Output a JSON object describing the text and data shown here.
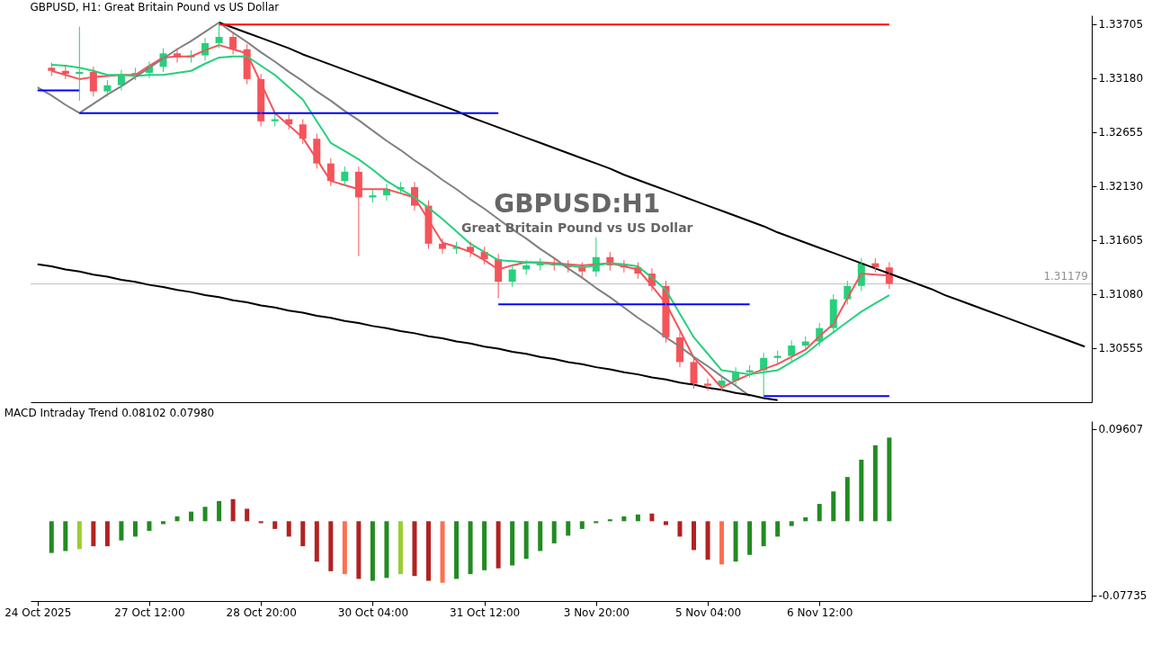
{
  "chart_data": [
    {
      "type": "candlestick",
      "title": "GBPUSD, H1:  Great Britain Pound vs US Dollar",
      "annotations": [
        "GBPUSD:H1",
        "Great Britain Pound vs US Dollar"
      ],
      "tick_labels": "y",
      "ylim": [
        1.3003,
        1.3379
      ],
      "yticks": [
        1.33705,
        {
          "value": 1.3318,
          "label": "1.33180"
        },
        1.32655,
        {
          "value": 1.3213,
          "label": "1.32130"
        },
        1.31605,
        {
          "value": 1.3108,
          "label": "1.31080"
        },
        1.30555
      ],
      "categories": [
        null,
        null,
        null,
        null,
        null,
        null,
        null,
        null,
        null,
        null,
        null,
        null,
        null,
        null,
        null,
        null,
        null,
        null,
        null,
        null,
        null,
        null,
        null,
        null,
        null,
        null,
        null,
        null,
        null,
        null,
        null,
        null,
        null,
        null,
        null,
        null,
        null,
        null,
        null,
        null,
        null,
        null,
        null,
        null,
        null,
        null,
        null,
        null,
        null,
        null,
        null,
        null,
        null,
        null,
        null,
        null,
        null,
        null,
        null,
        null,
        null,
        null,
        null,
        null,
        null,
        null,
        null,
        null,
        null,
        null,
        null,
        null,
        null,
        null,
        null,
        null
      ],
      "ohlc": [
        null,
        [
          1.3328,
          1.3333,
          1.332,
          1.3325
        ],
        [
          1.3325,
          1.333,
          1.3317,
          1.3322
        ],
        [
          1.3322,
          1.3368,
          1.3296,
          1.3324
        ],
        [
          1.3324,
          1.3329,
          1.33,
          1.3305
        ],
        [
          1.3305,
          1.3316,
          1.33,
          1.3311
        ],
        [
          1.3311,
          1.3326,
          1.3306,
          1.3321
        ],
        [
          1.3321,
          1.3328,
          1.3316,
          1.3323
        ],
        [
          1.3323,
          1.3334,
          1.3318,
          1.3329
        ],
        [
          1.3329,
          1.3347,
          1.3324,
          1.3342
        ],
        [
          1.3342,
          1.3347,
          1.3333,
          1.3338
        ],
        [
          1.3338,
          1.3345,
          1.3333,
          1.334
        ],
        [
          1.334,
          1.3357,
          1.3335,
          1.3352
        ],
        [
          1.3352,
          1.3372,
          1.3347,
          1.3358
        ],
        [
          1.3358,
          1.3363,
          1.3341,
          1.3346
        ],
        [
          1.3346,
          1.3351,
          1.3312,
          1.3317
        ],
        [
          1.3317,
          1.3322,
          1.3271,
          1.3276
        ],
        [
          1.3276,
          1.3283,
          1.3271,
          1.3278
        ],
        [
          1.3278,
          1.3283,
          1.3268,
          1.3273
        ],
        [
          1.3273,
          1.3278,
          1.3254,
          1.3259
        ],
        [
          1.3259,
          1.3264,
          1.323,
          1.3235
        ],
        [
          1.3235,
          1.324,
          1.3213,
          1.3218
        ],
        [
          1.3218,
          1.3232,
          1.3213,
          1.3227
        ],
        [
          1.3227,
          1.3232,
          1.3145,
          1.3202
        ],
        [
          1.3202,
          1.3209,
          1.3197,
          1.3204
        ],
        [
          1.3204,
          1.3215,
          1.3199,
          1.321
        ],
        [
          1.321,
          1.3217,
          1.3205,
          1.3212
        ],
        [
          1.3212,
          1.3217,
          1.3189,
          1.3194
        ],
        [
          1.3194,
          1.3199,
          1.3152,
          1.3157
        ],
        [
          1.3157,
          1.3162,
          1.3147,
          1.3152
        ],
        [
          1.3152,
          1.3159,
          1.3147,
          1.3154
        ],
        [
          1.3154,
          1.3159,
          1.3144,
          1.3149
        ],
        [
          1.3149,
          1.3154,
          1.3137,
          1.3142
        ],
        [
          1.3142,
          1.3147,
          1.3104,
          1.312
        ],
        [
          1.312,
          1.3137,
          1.3115,
          1.3132
        ],
        [
          1.3132,
          1.3141,
          1.3127,
          1.3136
        ],
        [
          1.3136,
          1.3143,
          1.3131,
          1.3138
        ],
        [
          1.3138,
          1.3143,
          1.3131,
          1.3136
        ],
        [
          1.3136,
          1.3141,
          1.3129,
          1.3134
        ],
        [
          1.3134,
          1.3139,
          1.3125,
          1.313
        ],
        [
          1.313,
          1.3163,
          1.3125,
          1.3144
        ],
        [
          1.3144,
          1.3149,
          1.3131,
          1.3136
        ],
        [
          1.3136,
          1.3141,
          1.3129,
          1.3134
        ],
        [
          1.3134,
          1.3139,
          1.3123,
          1.3128
        ],
        [
          1.3128,
          1.3133,
          1.3111,
          1.3116
        ],
        [
          1.3116,
          1.3121,
          1.3061,
          1.3066
        ],
        [
          1.3066,
          1.3071,
          1.3037,
          1.3042
        ],
        [
          1.3042,
          1.3047,
          1.3016,
          1.3021
        ],
        [
          1.3021,
          1.3026,
          1.3014,
          1.3019
        ],
        [
          1.3019,
          1.3029,
          1.3014,
          1.3024
        ],
        [
          1.3024,
          1.3037,
          1.3019,
          1.3032
        ],
        [
          1.3032,
          1.3039,
          1.3027,
          1.3034
        ],
        [
          1.3034,
          1.3051,
          1.3009,
          1.3046
        ],
        [
          1.3046,
          1.3053,
          1.3041,
          1.3048
        ],
        [
          1.3048,
          1.3063,
          1.3043,
          1.3058
        ],
        [
          1.3058,
          1.3067,
          1.3053,
          1.3062
        ],
        [
          1.3062,
          1.308,
          1.3057,
          1.3075
        ],
        [
          1.3075,
          1.3108,
          1.307,
          1.3103
        ],
        [
          1.3103,
          1.3121,
          1.3098,
          1.3116
        ],
        [
          1.3116,
          1.3143,
          1.3111,
          1.3138
        ],
        [
          1.3138,
          1.3143,
          1.3129,
          1.3134
        ],
        [
          1.3134,
          1.3139,
          1.3113,
          1.3118
        ],
        null,
        null,
        null,
        null,
        null,
        null,
        null,
        null,
        null,
        null,
        null,
        null,
        null,
        null
      ],
      "colors": [
        null,
        "#f4545a",
        "#f4545a",
        "#26d07c",
        "#f4545a",
        "#26d07c",
        "#26d07c",
        "#26d07c",
        "#26d07c",
        "#26d07c",
        "#f4545a",
        "#26d07c",
        "#26d07c",
        "#26d07c",
        "#f4545a",
        "#f4545a",
        "#f4545a",
        "#26d07c",
        "#f4545a",
        "#f4545a",
        "#f4545a",
        "#f4545a",
        "#26d07c",
        "#f4545a",
        "#26d07c",
        "#26d07c",
        "#26d07c",
        "#f4545a",
        "#f4545a",
        "#f4545a",
        "#26d07c",
        "#f4545a",
        "#f4545a",
        "#f4545a",
        "#26d07c",
        "#26d07c",
        "#26d07c",
        "#f4545a",
        "#f4545a",
        "#f4545a",
        "#26d07c",
        "#f4545a",
        "#f4545a",
        "#f4545a",
        "#f4545a",
        "#f4545a",
        "#f4545a",
        "#f4545a",
        "#f4545a",
        "#26d07c",
        "#26d07c",
        "#26d07c",
        "#26d07c",
        "#26d07c",
        "#26d07c",
        "#26d07c",
        "#26d07c",
        "#26d07c",
        "#26d07c",
        "#26d07c",
        "#f4545a",
        "#f4545a",
        null,
        null,
        null,
        null,
        null,
        null,
        null,
        null,
        null,
        null,
        null,
        null,
        null,
        null
      ],
      "series": [
        {
          "type": "line",
          "color": "#f4545a",
          "values": [
            null,
            1.3325,
            1.3321,
            1.3317,
            1.3319,
            1.332,
            1.3321,
            1.3321,
            1.333,
            1.3338,
            1.3339,
            1.3339,
            1.3345,
            1.335,
            1.3346,
            1.3342,
            1.3313,
            1.3284,
            1.3272,
            1.326,
            1.3239,
            1.3218,
            1.3214,
            1.321,
            1.321,
            1.321,
            1.3206,
            1.3202,
            1.318,
            1.3158,
            1.3154,
            1.3149,
            1.3141,
            1.3132,
            1.3136,
            1.3139,
            1.3139,
            1.3138,
            1.3137,
            1.3136,
            1.3137,
            1.3138,
            1.3135,
            1.3132,
            1.3116,
            1.3099,
            1.3073,
            1.3046,
            1.3032,
            1.3017,
            1.3024,
            1.303,
            1.3035,
            1.304,
            1.3047,
            1.3054,
            1.3067,
            1.3079,
            1.3104,
            1.3128,
            1.3127,
            1.3126,
            null,
            null,
            null,
            null,
            null,
            null,
            null,
            null,
            null,
            null,
            null,
            null,
            null,
            null
          ]
        },
        {
          "type": "line",
          "color": "#26d07c",
          "values": [
            null,
            1.3331,
            1.333,
            1.3328,
            1.3325,
            1.3321,
            1.3321,
            1.332,
            1.3321,
            1.3321,
            1.3323,
            1.3325,
            1.3332,
            1.3338,
            1.3339,
            1.3339,
            1.333,
            1.3321,
            1.3309,
            1.3297,
            1.3276,
            1.3255,
            1.3247,
            1.3239,
            1.3229,
            1.3218,
            1.321,
            1.3202,
            1.3192,
            1.3181,
            1.3169,
            1.3157,
            1.3149,
            1.3141,
            1.314,
            1.3139,
            1.3138,
            1.3137,
            1.3136,
            1.3134,
            1.3136,
            1.3138,
            1.3137,
            1.3135,
            1.3124,
            1.3112,
            1.3089,
            1.3066,
            1.305,
            1.3034,
            1.3032,
            1.303,
            1.3032,
            1.3034,
            1.3042,
            1.305,
            1.3061,
            1.3071,
            1.3081,
            1.3091,
            1.3099,
            1.3107,
            null,
            null,
            null,
            null,
            null,
            null,
            null,
            null,
            null,
            null,
            null,
            null,
            null,
            null
          ]
        },
        {
          "type": "line",
          "color": "#808080",
          "values": [
            1.3309,
            1.3301,
            1.3292,
            1.3284,
            1.3293,
            1.3302,
            1.331,
            1.3319,
            1.3328,
            1.3337,
            1.3346,
            1.3354,
            1.3363,
            1.3372,
            1.3362,
            1.3353,
            1.3343,
            1.3334,
            1.3324,
            1.3315,
            1.3305,
            1.3296,
            1.3286,
            1.3277,
            1.3267,
            1.3257,
            1.3248,
            1.3238,
            1.3229,
            1.3219,
            1.321,
            1.32,
            1.3191,
            1.3181,
            1.3171,
            1.3162,
            1.3152,
            1.3143,
            1.3133,
            1.3124,
            1.3114,
            1.3105,
            1.3095,
            1.3085,
            1.3076,
            1.3066,
            1.3057,
            1.3047,
            1.3038,
            1.3028,
            1.3019,
            1.3009,
            null,
            null,
            null,
            null,
            null,
            null,
            null,
            null,
            null,
            null,
            null,
            null,
            null,
            null,
            null,
            null,
            null,
            null,
            null,
            null,
            null,
            null,
            null,
            null
          ]
        },
        {
          "type": "line",
          "color": "#000000",
          "values": [
            null,
            null,
            null,
            null,
            null,
            null,
            null,
            null,
            null,
            null,
            null,
            null,
            null,
            1.3372,
            1.3367,
            1.3362,
            1.3357,
            1.3352,
            1.3347,
            1.3341,
            1.3336,
            1.3331,
            1.3326,
            1.3321,
            1.3316,
            1.3311,
            1.3306,
            1.3301,
            1.3296,
            1.3291,
            1.3286,
            1.328,
            1.3275,
            1.327,
            1.3265,
            1.326,
            1.3255,
            1.325,
            1.3245,
            1.324,
            1.3235,
            1.323,
            1.3224,
            1.3219,
            1.3214,
            1.3209,
            1.3204,
            1.3199,
            1.3194,
            1.3189,
            1.3184,
            1.3179,
            1.3174,
            1.3168,
            1.3163,
            1.3158,
            1.3153,
            1.3148,
            1.3143,
            1.3138,
            1.3133,
            1.3128,
            1.3123,
            1.3118,
            1.3113,
            1.3107,
            1.3102,
            1.3097,
            1.3092,
            1.3087,
            1.3082,
            1.3077,
            1.3072,
            1.3067,
            1.3062,
            1.3057
          ]
        },
        {
          "type": "line",
          "color": "#000000",
          "values": [
            1.3137,
            1.3135,
            1.3132,
            1.313,
            1.3127,
            1.3125,
            1.3122,
            1.312,
            1.3117,
            1.3115,
            1.3112,
            1.311,
            1.3107,
            1.3105,
            1.3102,
            1.31,
            1.3097,
            1.3095,
            1.3092,
            1.309,
            1.3087,
            1.3085,
            1.3082,
            1.308,
            1.3077,
            1.3075,
            1.3072,
            1.307,
            1.3067,
            1.3065,
            1.3062,
            1.306,
            1.3057,
            1.3055,
            1.3052,
            1.305,
            1.3047,
            1.3045,
            1.3042,
            1.304,
            1.3037,
            1.3035,
            1.3032,
            1.303,
            1.3027,
            1.3025,
            1.3022,
            1.302,
            1.3017,
            1.3015,
            1.3012,
            1.301,
            1.3007,
            1.3005,
            null,
            null,
            null,
            null,
            null,
            null,
            null,
            null,
            null,
            null,
            null,
            null,
            null,
            null,
            null,
            null,
            null,
            null,
            null,
            null,
            null,
            null
          ]
        },
        {
          "type": "line",
          "color": "#0000ff",
          "values": [
            1.3306,
            1.3306,
            1.3306,
            1.3306,
            null,
            null,
            null,
            null,
            null,
            null,
            null,
            null,
            null,
            null,
            null,
            null,
            null,
            null,
            null,
            null,
            null,
            null,
            null,
            null,
            null,
            null,
            null,
            null,
            null,
            null,
            null,
            null,
            null,
            null,
            null,
            null,
            null,
            null,
            null,
            null,
            null,
            null,
            null,
            null,
            null,
            null,
            null,
            null,
            null,
            null,
            null,
            null,
            null,
            null,
            null,
            null,
            null,
            null,
            null,
            null,
            null,
            null,
            null,
            null,
            null,
            null,
            null,
            null,
            null,
            null,
            null,
            null,
            null,
            null,
            null,
            null
          ]
        },
        {
          "type": "line",
          "color": "#0000ff",
          "values": [
            null,
            null,
            null,
            1.3284,
            1.3284,
            1.3284,
            1.3284,
            1.3284,
            1.3284,
            1.3284,
            1.3284,
            1.3284,
            1.3284,
            1.3284,
            1.3284,
            1.3284,
            1.3284,
            1.3284,
            1.3284,
            1.3284,
            1.3284,
            1.3284,
            1.3284,
            1.3284,
            1.3284,
            1.3284,
            1.3284,
            1.3284,
            1.3284,
            1.3284,
            1.3284,
            1.3284,
            1.3284,
            1.3284,
            null,
            null,
            null,
            null,
            null,
            null,
            null,
            null,
            null,
            null,
            null,
            null,
            null,
            null,
            null,
            null,
            null,
            null,
            null,
            null,
            null,
            null,
            null,
            null,
            null,
            null,
            null,
            null,
            null,
            null,
            null,
            null,
            null,
            null,
            null,
            null,
            null,
            null,
            null,
            null,
            null,
            null
          ]
        },
        {
          "type": "line",
          "color": "#0000ff",
          "values": [
            null,
            null,
            null,
            null,
            null,
            null,
            null,
            null,
            null,
            null,
            null,
            null,
            null,
            null,
            null,
            null,
            null,
            null,
            null,
            null,
            null,
            null,
            null,
            null,
            null,
            null,
            null,
            null,
            null,
            null,
            null,
            null,
            null,
            1.3098,
            1.3098,
            1.3098,
            1.3098,
            1.3098,
            1.3098,
            1.3098,
            1.3098,
            1.3098,
            1.3098,
            1.3098,
            1.3098,
            1.3098,
            1.3098,
            1.3098,
            1.3098,
            1.3098,
            1.3098,
            1.3098,
            null,
            null,
            null,
            null,
            null,
            null,
            null,
            null,
            null,
            null,
            null,
            null,
            null,
            null,
            null,
            null,
            null,
            null,
            null,
            null,
            null,
            null,
            null,
            null
          ]
        },
        {
          "type": "line",
          "color": "#0000ff",
          "values": [
            null,
            null,
            null,
            null,
            null,
            null,
            null,
            null,
            null,
            null,
            null,
            null,
            null,
            null,
            null,
            null,
            null,
            null,
            null,
            null,
            null,
            null,
            null,
            null,
            null,
            null,
            null,
            null,
            null,
            null,
            null,
            null,
            null,
            null,
            null,
            null,
            null,
            null,
            null,
            null,
            null,
            null,
            null,
            null,
            null,
            null,
            null,
            null,
            null,
            null,
            null,
            null,
            1.3009,
            1.3009,
            1.3009,
            1.3009,
            1.3009,
            1.3009,
            1.3009,
            1.3009,
            1.3009,
            1.3009,
            null,
            null,
            null,
            null,
            null,
            null,
            null,
            null,
            null,
            null,
            null,
            null,
            null,
            null
          ]
        },
        {
          "type": "line",
          "color": "#ff0000",
          "values": [
            null,
            null,
            null,
            null,
            null,
            null,
            null,
            null,
            null,
            null,
            null,
            null,
            null,
            1.337,
            1.337,
            1.337,
            1.337,
            1.337,
            1.337,
            1.337,
            1.337,
            1.337,
            1.337,
            1.337,
            1.337,
            1.337,
            1.337,
            1.337,
            1.337,
            1.337,
            1.337,
            1.337,
            1.337,
            1.337,
            1.337,
            1.337,
            1.337,
            1.337,
            1.337,
            1.337,
            1.337,
            1.337,
            1.337,
            1.337,
            1.337,
            1.337,
            1.337,
            1.337,
            1.337,
            1.337,
            1.337,
            1.337,
            1.337,
            1.337,
            1.337,
            1.337,
            1.337,
            1.337,
            1.337,
            1.337,
            1.337,
            1.337,
            null,
            null,
            null,
            null,
            null,
            null,
            null,
            null,
            null,
            null,
            null,
            null,
            null,
            null
          ]
        }
      ],
      "ref_lines": [
        {
          "axis": "y",
          "value": 1.31179,
          "label": "1.31179",
          "color": "#c0c0c0"
        }
      ]
    },
    {
      "type": "bar",
      "title": "MACD Intraday Trend  0.08102 0.07980",
      "ylim": [
        -0.083,
        0.1042
      ],
      "yticks": [
        0.09607,
        -0.07735
      ],
      "categories": [
        "24 Oct 2025",
        null,
        null,
        null,
        null,
        null,
        null,
        null,
        "27 Oct 12:00",
        null,
        null,
        null,
        null,
        null,
        null,
        null,
        "28 Oct 20:00",
        null,
        null,
        null,
        null,
        null,
        null,
        null,
        "30 Oct 04:00",
        null,
        null,
        null,
        null,
        null,
        null,
        null,
        "31 Oct 12:00",
        null,
        null,
        null,
        null,
        null,
        null,
        null,
        "3 Nov 20:00",
        null,
        null,
        null,
        null,
        null,
        null,
        null,
        "5 Nov 04:00",
        null,
        null,
        null,
        null,
        null,
        null,
        null,
        "6 Nov 12:00",
        null,
        null,
        null,
        null,
        null,
        null,
        null,
        null,
        null,
        null,
        null,
        null,
        null,
        null,
        null,
        null,
        null,
        null,
        null
      ],
      "values": [
        null,
        -0.033,
        -0.031,
        -0.029,
        -0.026,
        -0.026,
        -0.02,
        -0.016,
        -0.01,
        -0.003,
        0.005,
        0.01,
        0.015,
        0.021,
        0.023,
        0.013,
        -0.002,
        -0.008,
        -0.016,
        -0.026,
        -0.042,
        -0.052,
        -0.055,
        -0.06,
        -0.062,
        -0.059,
        -0.055,
        -0.057,
        -0.062,
        -0.064,
        -0.06,
        -0.055,
        -0.051,
        -0.049,
        -0.046,
        -0.039,
        -0.031,
        -0.023,
        -0.015,
        -0.008,
        -0.002,
        0.002,
        0.005,
        0.007,
        0.008,
        -0.004,
        -0.016,
        -0.03,
        -0.04,
        -0.045,
        -0.042,
        -0.035,
        -0.026,
        -0.016,
        -0.005,
        0.004,
        0.018,
        0.031,
        0.046,
        0.064,
        0.079,
        0.087,
        null,
        null,
        null,
        null,
        null,
        null,
        null,
        null,
        null,
        null,
        null,
        null,
        null,
        null
      ],
      "colors": [
        null,
        "#228b22",
        "#228b22",
        "#9acd32",
        "#b22222",
        "#b22222",
        "#228b22",
        "#228b22",
        "#228b22",
        "#228b22",
        "#228b22",
        "#228b22",
        "#228b22",
        "#228b22",
        "#b22222",
        "#b22222",
        "#b22222",
        "#b22222",
        "#b22222",
        "#b22222",
        "#b22222",
        "#b22222",
        "#ff6f4f",
        "#b22222",
        "#228b22",
        "#228b22",
        "#9acd32",
        "#b22222",
        "#b22222",
        "#ff6f4f",
        "#228b22",
        "#228b22",
        "#228b22",
        "#b22222",
        "#228b22",
        "#228b22",
        "#228b22",
        "#228b22",
        "#228b22",
        "#228b22",
        "#228b22",
        "#228b22",
        "#228b22",
        "#228b22",
        "#b22222",
        "#b22222",
        "#b22222",
        "#b22222",
        "#b22222",
        "#ff6f4f",
        "#228b22",
        "#228b22",
        "#228b22",
        "#228b22",
        "#228b22",
        "#228b22",
        "#228b22",
        "#228b22",
        "#228b22",
        "#228b22",
        "#228b22",
        "#228b22",
        null,
        null,
        null,
        null,
        null,
        null,
        null,
        null,
        null,
        null,
        null,
        null,
        null,
        null
      ]
    }
  ]
}
